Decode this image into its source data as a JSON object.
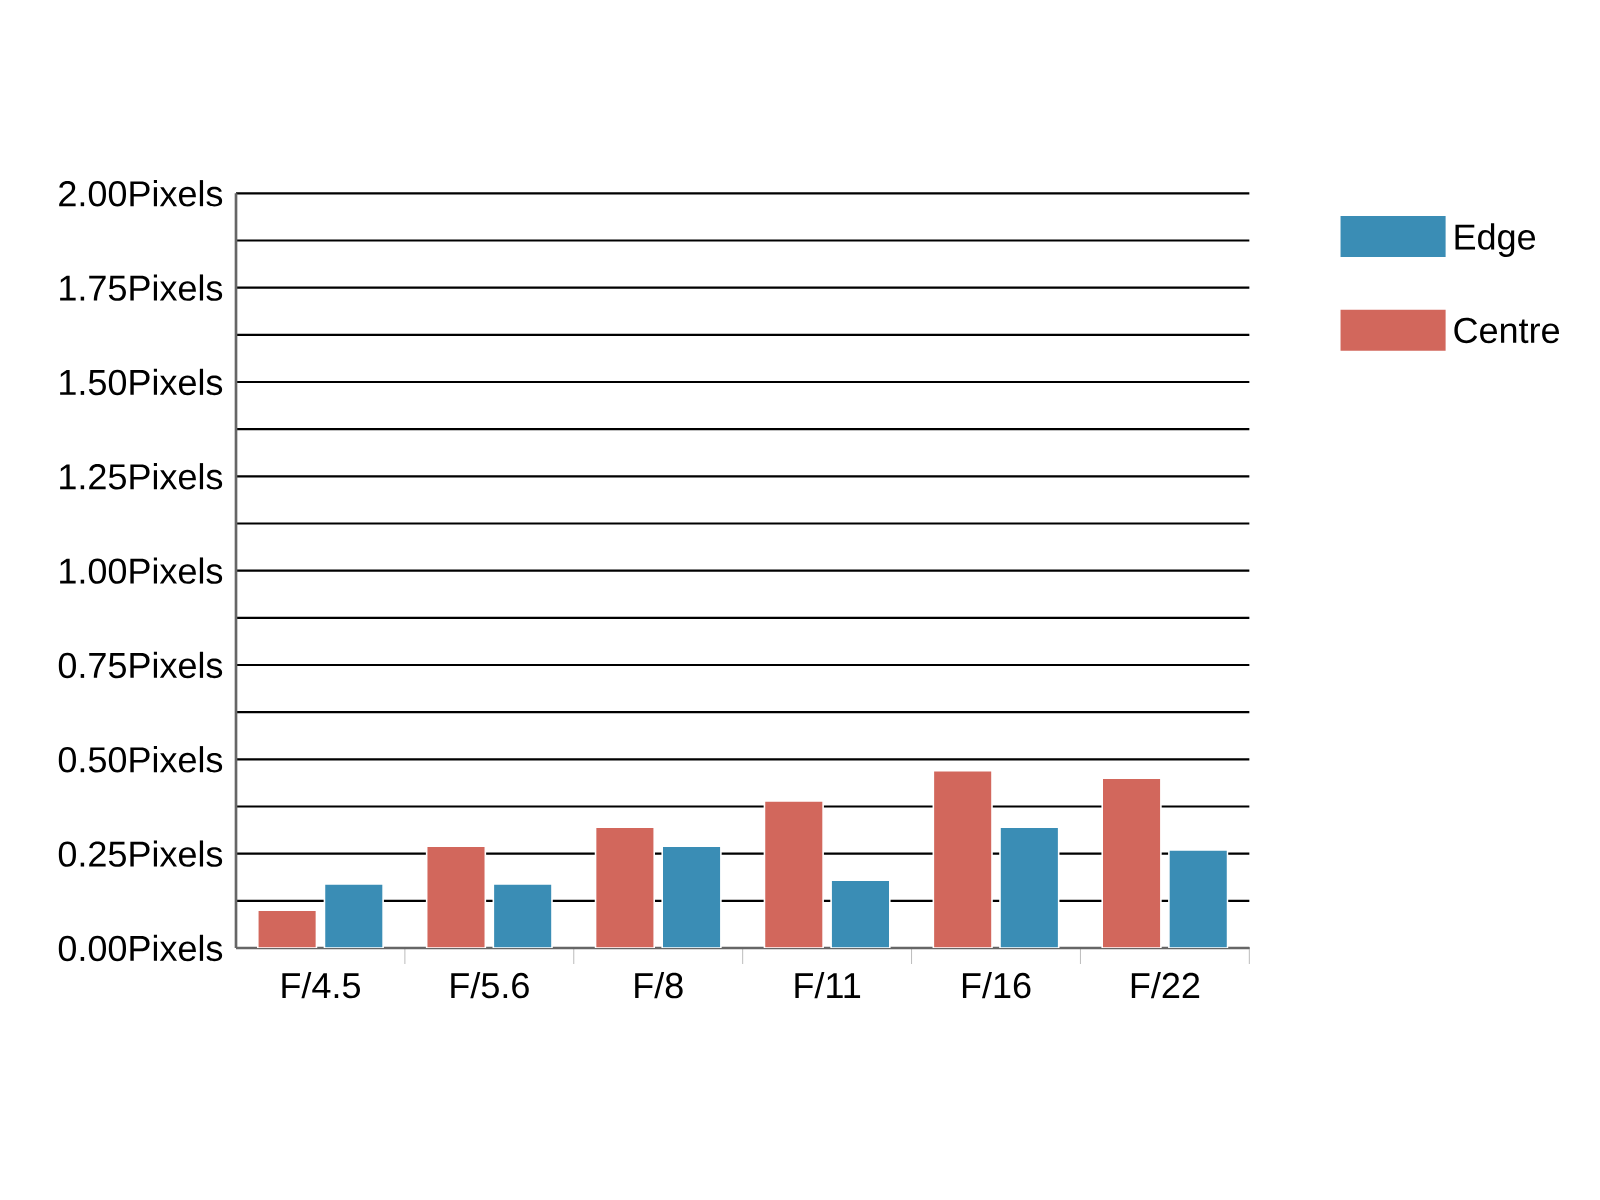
{
  "chart_data": {
    "type": "bar",
    "categories": [
      "F/4.5",
      "F/5.6",
      "F/8",
      "F/11",
      "F/16",
      "F/22"
    ],
    "series": [
      {
        "name": "Centre",
        "color": "#d2675c",
        "values": [
          0.1,
          0.27,
          0.32,
          0.39,
          0.47,
          0.45
        ]
      },
      {
        "name": "Edge",
        "color": "#3a8db5",
        "values": [
          0.17,
          0.17,
          0.27,
          0.18,
          0.32,
          0.26
        ]
      }
    ],
    "ylim": [
      0,
      2
    ],
    "yticks": [
      {
        "value": 0,
        "label": "0.00Pixels"
      },
      {
        "value": 0.125,
        "label": null
      },
      {
        "value": 0.25,
        "label": "0.25Pixels"
      },
      {
        "value": 0.375,
        "label": null
      },
      {
        "value": 0.5,
        "label": "0.50Pixels"
      },
      {
        "value": 0.625,
        "label": null
      },
      {
        "value": 0.75,
        "label": "0.75Pixels"
      },
      {
        "value": 0.875,
        "label": null
      },
      {
        "value": 1.0,
        "label": "1.00Pixels"
      },
      {
        "value": 1.125,
        "label": null
      },
      {
        "value": 1.25,
        "label": "1.25Pixels"
      },
      {
        "value": 1.375,
        "label": null
      },
      {
        "value": 1.5,
        "label": "1.50Pixels"
      },
      {
        "value": 1.625,
        "label": null
      },
      {
        "value": 1.75,
        "label": "1.75Pixels"
      },
      {
        "value": 1.875,
        "label": null
      },
      {
        "value": 2.0,
        "label": "2.00Pixels"
      }
    ],
    "grid": "y",
    "legend": "top right"
  }
}
